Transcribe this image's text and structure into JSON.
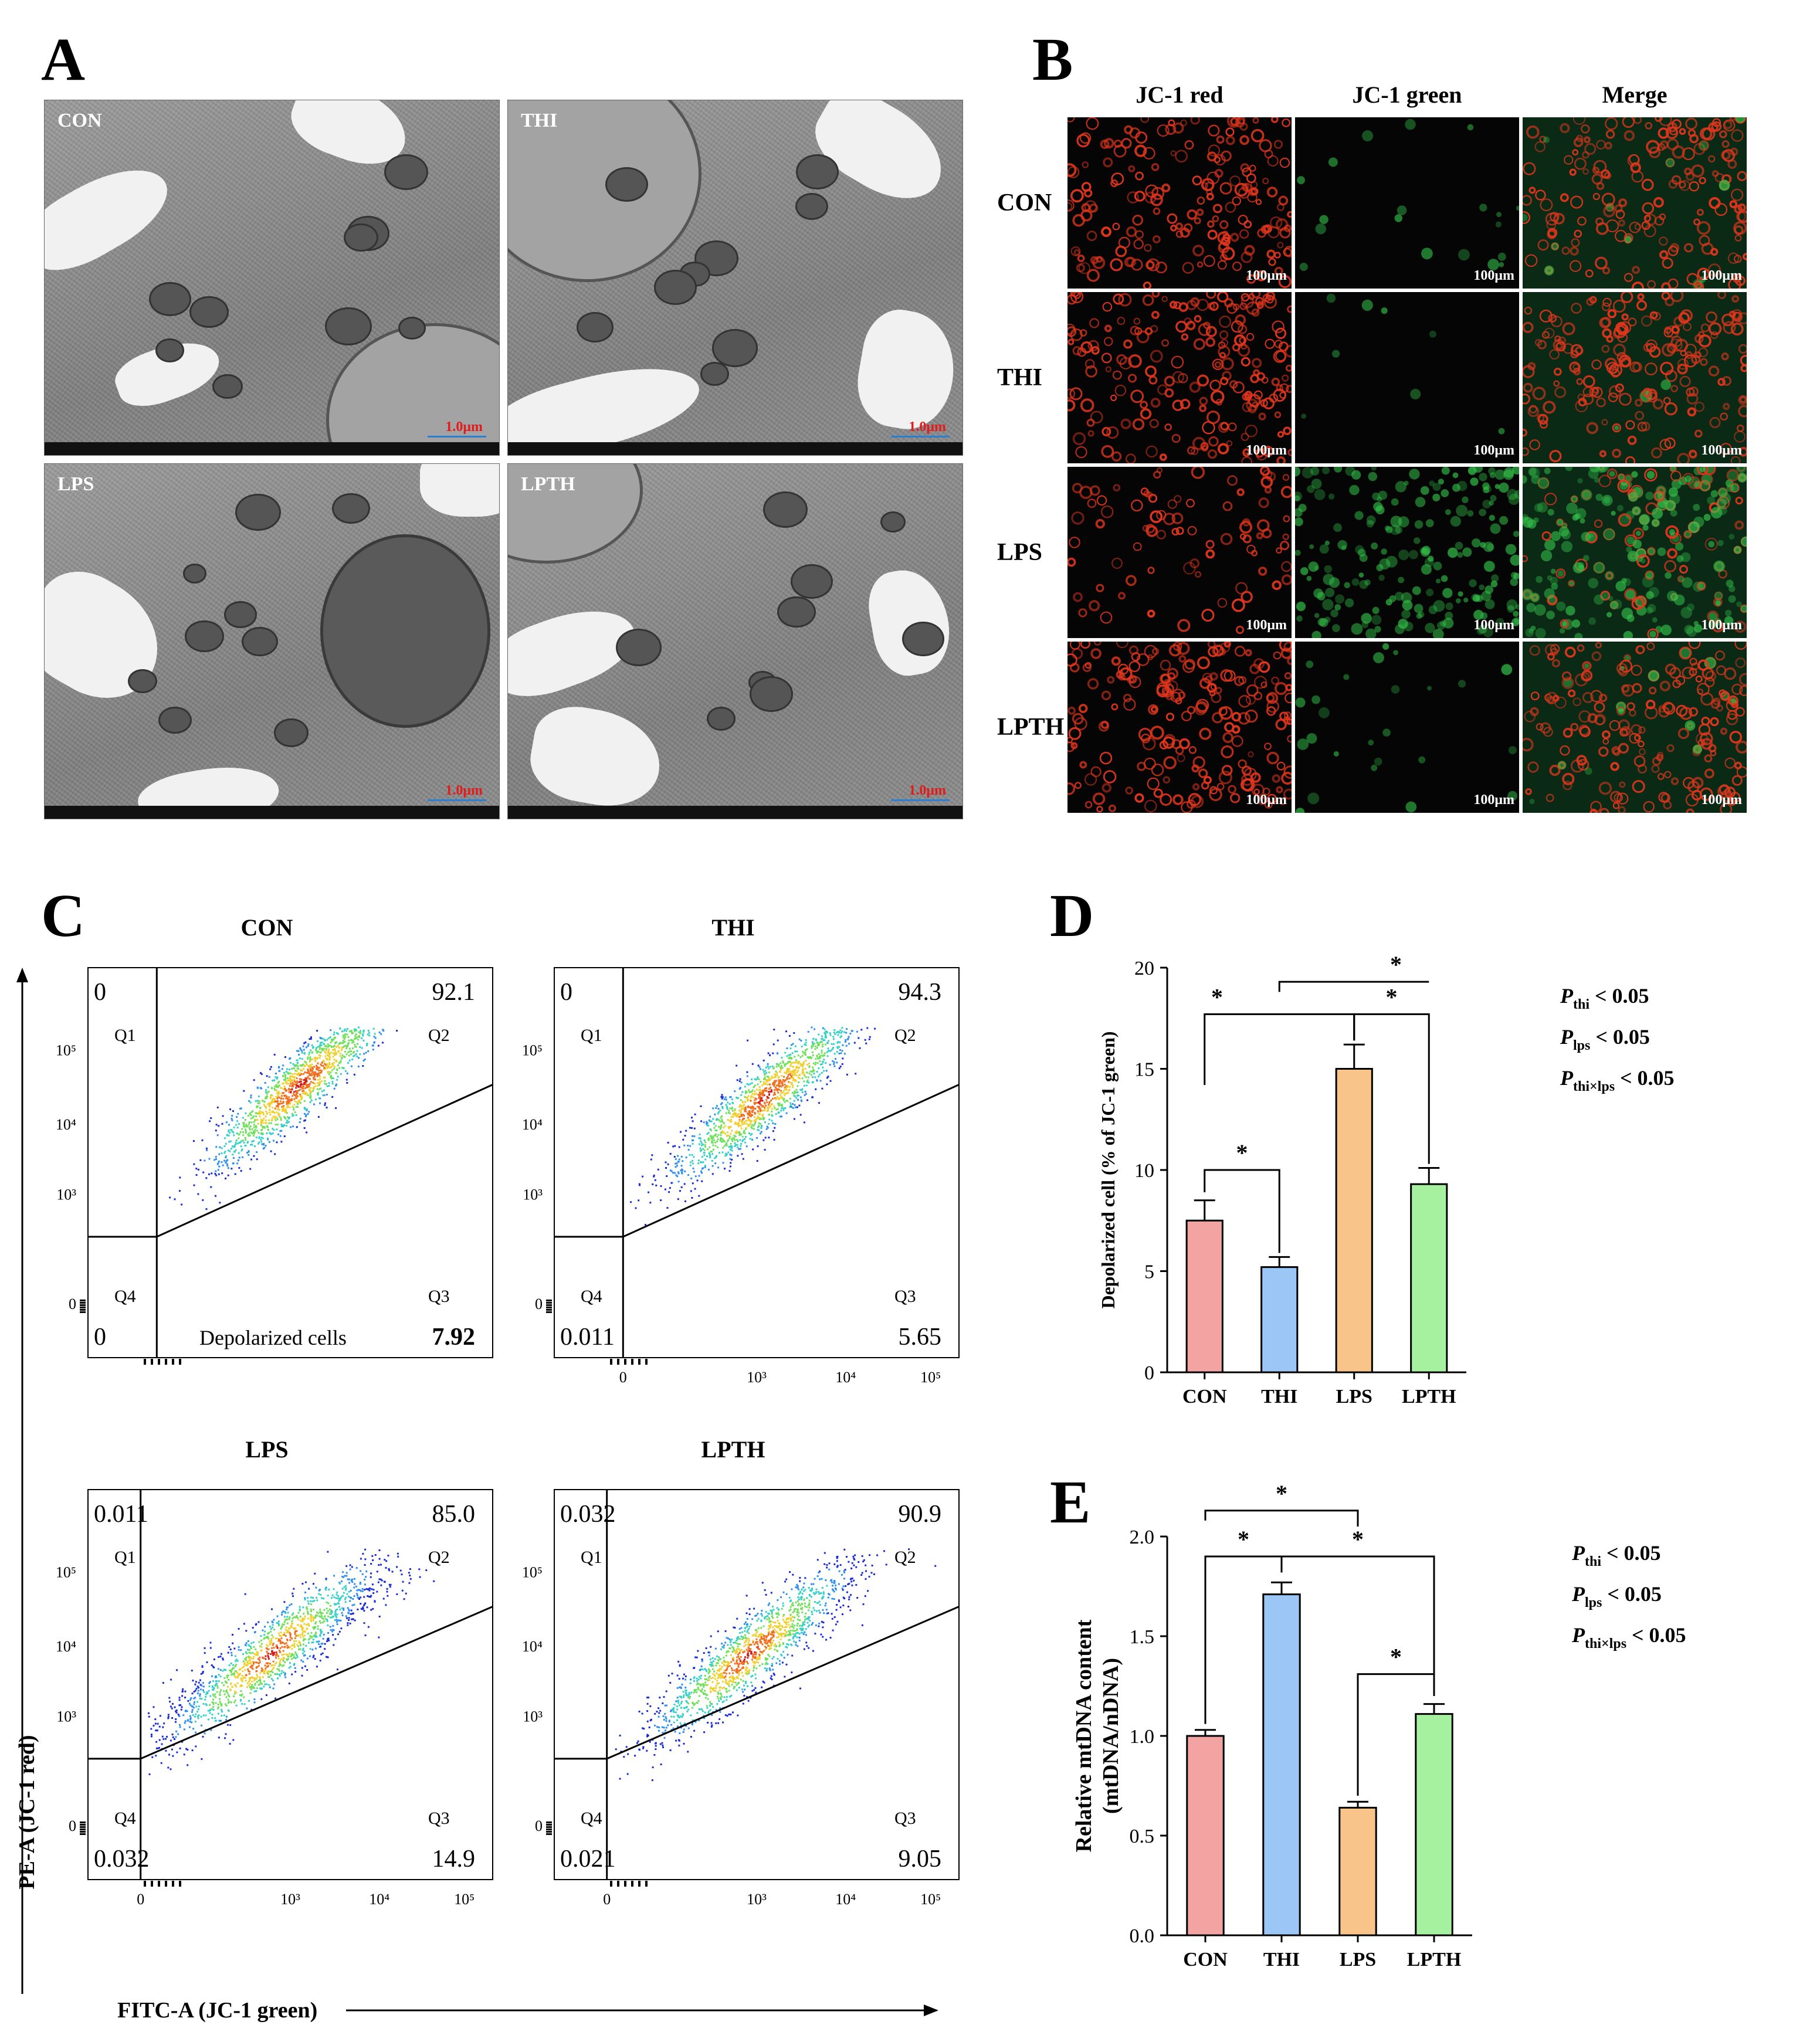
{
  "panels": {
    "A": "A",
    "B": "B",
    "C": "C",
    "D": "D",
    "E": "E"
  },
  "panel_a": {
    "images": [
      {
        "label": "CON",
        "scale": "1.0μm"
      },
      {
        "label": "THI",
        "scale": "1.0μm"
      },
      {
        "label": "LPS",
        "scale": "1.0μm"
      },
      {
        "label": "LPTH",
        "scale": "1.0μm"
      }
    ]
  },
  "panel_b": {
    "columns": [
      "JC-1 red",
      "JC-1 green",
      "Merge"
    ],
    "rows": [
      "CON",
      "THI",
      "LPS",
      "LPTH"
    ],
    "scale": "100μm",
    "colors": {
      "red": "#e0361d",
      "green": "#33c24a",
      "merge_bg": "#0d3a1c"
    }
  },
  "panel_c": {
    "x_axis_label": "FITC-A (JC-1 green)",
    "y_axis_label": "PE-A (JC-1 red)",
    "x_ticks": [
      "0",
      "10³",
      "10⁴",
      "10⁵"
    ],
    "y_ticks": [
      "0",
      "10³",
      "10⁴",
      "10⁵"
    ],
    "quadrants": [
      "Q1",
      "Q2",
      "Q3",
      "Q4"
    ],
    "depolarized_label": "Depolarized cells",
    "plots": [
      {
        "title": "CON",
        "q1": "0",
        "q2": "92.1",
        "q3": "7.92",
        "q4": "0",
        "bold_q3": true
      },
      {
        "title": "THI",
        "q1": "0",
        "q2": "94.3",
        "q3": "5.65",
        "q4": "0.011",
        "bold_q3": false
      },
      {
        "title": "LPS",
        "q1": "0.011",
        "q2": "85.0",
        "q3": "14.9",
        "q4": "0.032",
        "bold_q3": false
      },
      {
        "title": "LPTH",
        "q1": "0.032",
        "q2": "90.9",
        "q3": "9.05",
        "q4": "0.021",
        "bold_q3": false
      }
    ]
  },
  "chart_data": [
    {
      "type": "bar",
      "panel": "D",
      "categories": [
        "CON",
        "THI",
        "LPS",
        "LPTH"
      ],
      "values": [
        7.5,
        5.2,
        15.0,
        9.3
      ],
      "errors": [
        1.0,
        0.5,
        1.2,
        0.8
      ],
      "colors": [
        "#f4a3a3",
        "#9cc6f5",
        "#f9c48a",
        "#a6f1a0"
      ],
      "ylabel": "Depolarized cell (% of JC-1 green)",
      "ylim": [
        0,
        20
      ],
      "yticks": [
        "0",
        "5",
        "10",
        "15",
        "20"
      ],
      "significance": [
        "*",
        "*",
        "*",
        "*"
      ],
      "stats": [
        {
          "sub": "thi",
          "text": " < 0.05"
        },
        {
          "sub": "lps",
          "text": " < 0.05"
        },
        {
          "sub": "thi×lps",
          "text": " < 0.05"
        }
      ],
      "stat_prefix": "P"
    },
    {
      "type": "bar",
      "panel": "E",
      "categories": [
        "CON",
        "THI",
        "LPS",
        "LPTH"
      ],
      "values": [
        1.0,
        1.71,
        0.64,
        1.11
      ],
      "errors": [
        0.03,
        0.06,
        0.03,
        0.05
      ],
      "colors": [
        "#f4a3a3",
        "#9cc6f5",
        "#f9c48a",
        "#a6f1a0"
      ],
      "ylabel": "Relative mtDNA content",
      "ylabel2": "(mtDNA/nDNA)",
      "ylim": [
        0,
        2.0
      ],
      "yticks": [
        "0.0",
        "0.5",
        "1.0",
        "1.5",
        "2.0"
      ],
      "significance": [
        "*",
        "*",
        "*",
        "*"
      ],
      "stats": [
        {
          "sub": "thi",
          "text": " < 0.05"
        },
        {
          "sub": "lps",
          "text": " < 0.05"
        },
        {
          "sub": "thi×lps",
          "text": " < 0.05"
        }
      ],
      "stat_prefix": "P"
    }
  ]
}
